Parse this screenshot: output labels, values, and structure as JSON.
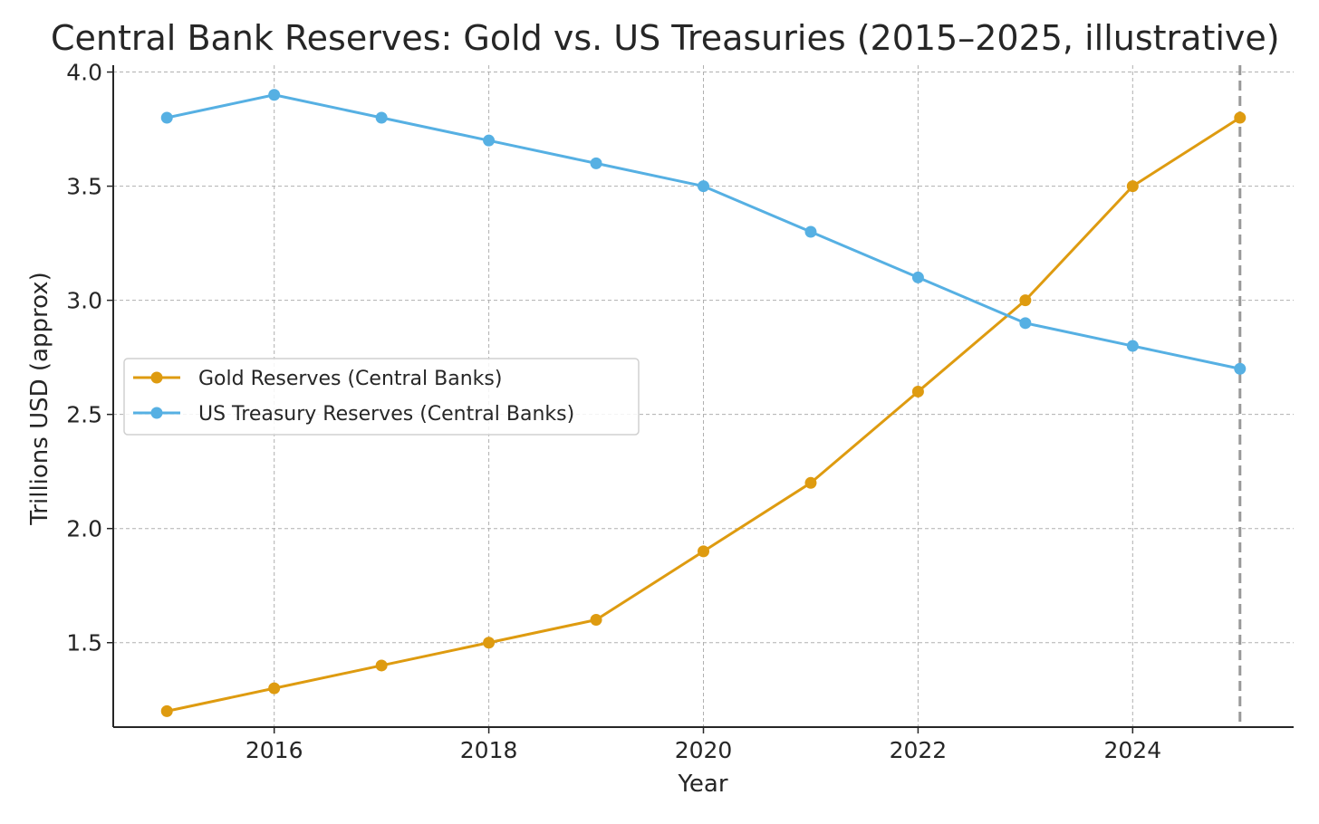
{
  "chart_data": {
    "type": "line",
    "title": "Central Bank Reserves: Gold vs. US Treasuries (2015–2025, illustrative)",
    "xlabel": "Year",
    "ylabel": "Trillions USD (approx)",
    "x": [
      2015,
      2016,
      2017,
      2018,
      2019,
      2020,
      2021,
      2022,
      2023,
      2024,
      2025
    ],
    "xlim": [
      2014.5,
      2025.5
    ],
    "ylim": [
      1.13,
      4.03
    ],
    "xticks": [
      "2016",
      "2018",
      "2020",
      "2022",
      "2024"
    ],
    "yticks": [
      "1.5",
      "2.0",
      "2.5",
      "3.0",
      "3.5",
      "4.0"
    ],
    "grid": true,
    "legend_location": "center-left",
    "vertical_reference_line": {
      "x": 2025,
      "style": "dashed",
      "color": "#999999"
    },
    "series": [
      {
        "name": "Gold Reserves (Central Banks)",
        "color": "#DE9B10",
        "values": [
          1.2,
          1.3,
          1.4,
          1.5,
          1.6,
          1.9,
          2.2,
          2.6,
          3.0,
          3.5,
          3.8
        ]
      },
      {
        "name": "US Treasury Reserves (Central Banks)",
        "color": "#56B0E3",
        "values": [
          3.8,
          3.9,
          3.8,
          3.7,
          3.6,
          3.5,
          3.3,
          3.1,
          2.9,
          2.8,
          2.7
        ]
      }
    ]
  }
}
